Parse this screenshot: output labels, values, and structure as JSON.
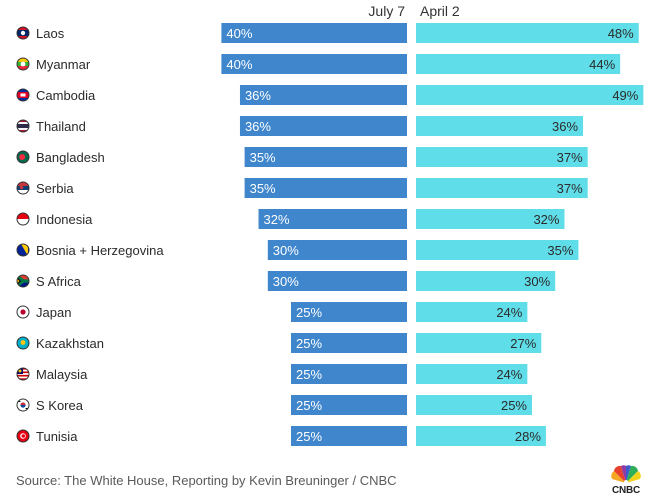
{
  "chart_data": {
    "type": "bar",
    "orientation": "horizontal-diverging",
    "series": [
      {
        "name": "July 7",
        "color": "#3f86cc"
      },
      {
        "name": "April 2",
        "color": "#5fdde8"
      }
    ],
    "rows": [
      {
        "country": "Laos",
        "flag": "laos-flag-icon",
        "july": 40,
        "april": 48
      },
      {
        "country": "Myanmar",
        "flag": "myanmar-flag-icon",
        "july": 40,
        "april": 44
      },
      {
        "country": "Cambodia",
        "flag": "cambodia-flag-icon",
        "july": 36,
        "april": 49
      },
      {
        "country": "Thailand",
        "flag": "thailand-flag-icon",
        "july": 36,
        "april": 36
      },
      {
        "country": "Bangladesh",
        "flag": "bangladesh-flag-icon",
        "july": 35,
        "april": 37
      },
      {
        "country": "Serbia",
        "flag": "serbia-flag-icon",
        "july": 35,
        "april": 37
      },
      {
        "country": "Indonesia",
        "flag": "indonesia-flag-icon",
        "july": 32,
        "april": 32
      },
      {
        "country": "Bosnia + Herzegovina",
        "flag": "bosnia-flag-icon",
        "july": 30,
        "april": 35
      },
      {
        "country": "S Africa",
        "flag": "south-africa-flag-icon",
        "july": 30,
        "april": 30
      },
      {
        "country": "Japan",
        "flag": "japan-flag-icon",
        "july": 25,
        "april": 24
      },
      {
        "country": "Kazakhstan",
        "flag": "kazakhstan-flag-icon",
        "july": 25,
        "april": 27
      },
      {
        "country": "Malaysia",
        "flag": "malaysia-flag-icon",
        "july": 25,
        "april": 24
      },
      {
        "country": "S Korea",
        "flag": "south-korea-flag-icon",
        "july": 25,
        "april": 25
      },
      {
        "country": "Tunisia",
        "flag": "tunisia-flag-icon",
        "july": 25,
        "april": 28
      }
    ],
    "value_suffix": "%",
    "xlim": [
      0,
      50
    ]
  },
  "footer": {
    "source": "Source: The White House, Reporting by Kevin Breuninger / CNBC",
    "logo_text": "CNBC"
  }
}
